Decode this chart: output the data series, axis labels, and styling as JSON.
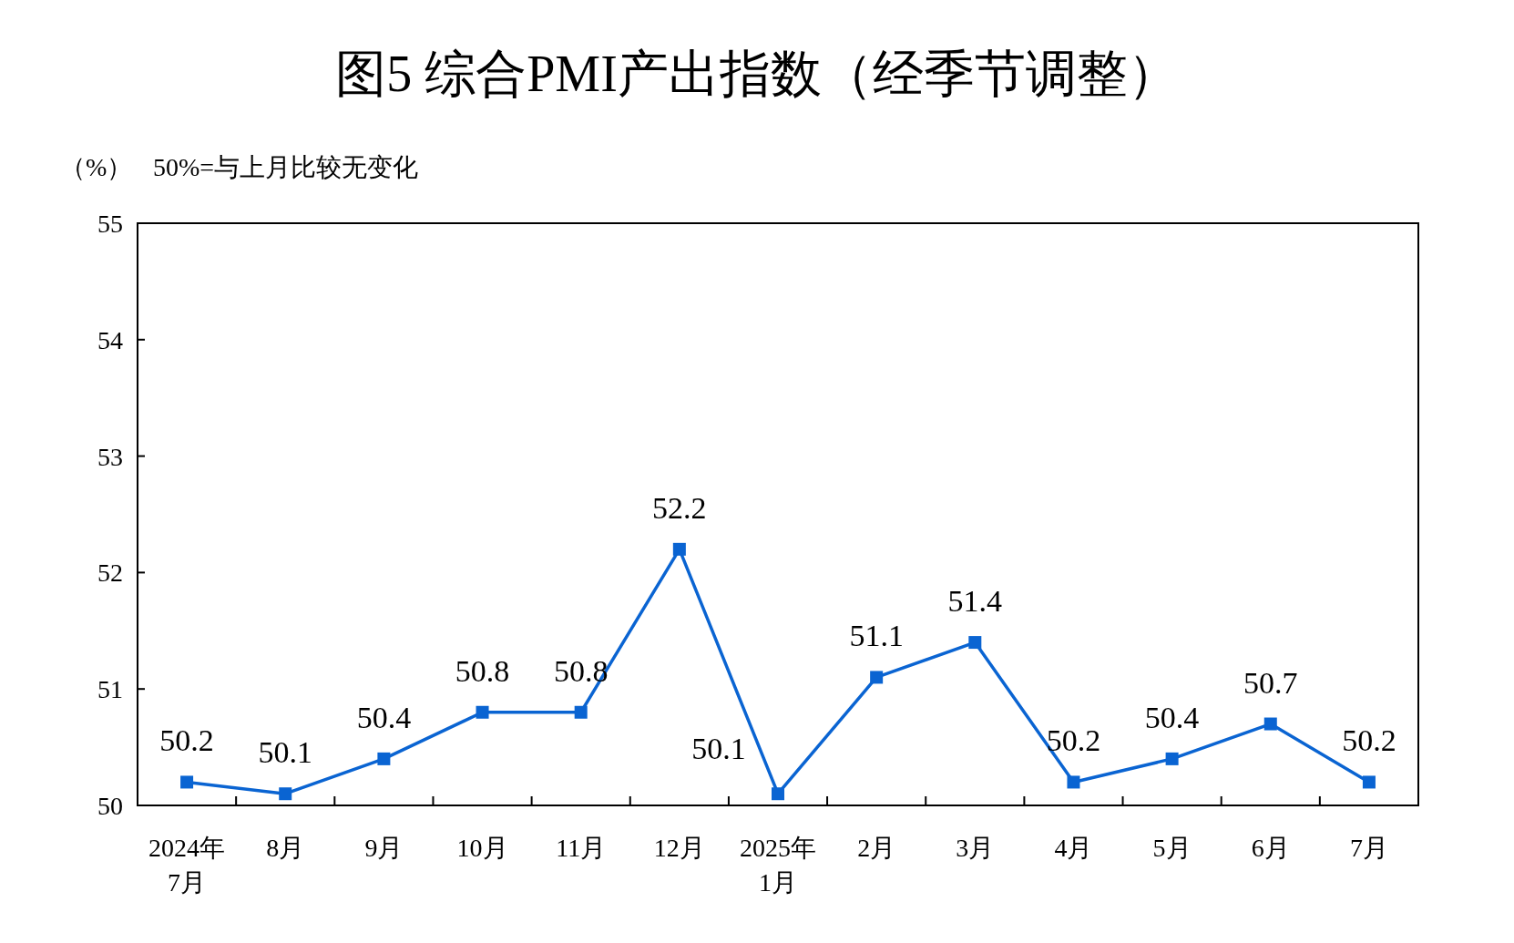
{
  "chart_data": {
    "type": "line",
    "title": "图5  综合PMI产出指数（经季节调整）",
    "ylabel": "（%）",
    "annotations": [
      "50%=与上月比较无变化"
    ],
    "categories": [
      "2024年\n7月",
      "8月",
      "9月",
      "10月",
      "11月",
      "12月",
      "2025年\n1月",
      "2月",
      "3月",
      "4月",
      "5月",
      "6月",
      "7月"
    ],
    "series": [
      {
        "color": "#0a64d2",
        "values": [
          50.2,
          50.1,
          50.4,
          50.8,
          50.8,
          52.2,
          50.1,
          51.1,
          51.4,
          50.2,
          50.4,
          50.7,
          50.2
        ]
      }
    ],
    "ylim": [
      50,
      55
    ],
    "yticks": [
      50,
      51,
      52,
      53,
      54,
      55
    ],
    "marker": "square",
    "line_style": "solid",
    "data_labels": true
  }
}
